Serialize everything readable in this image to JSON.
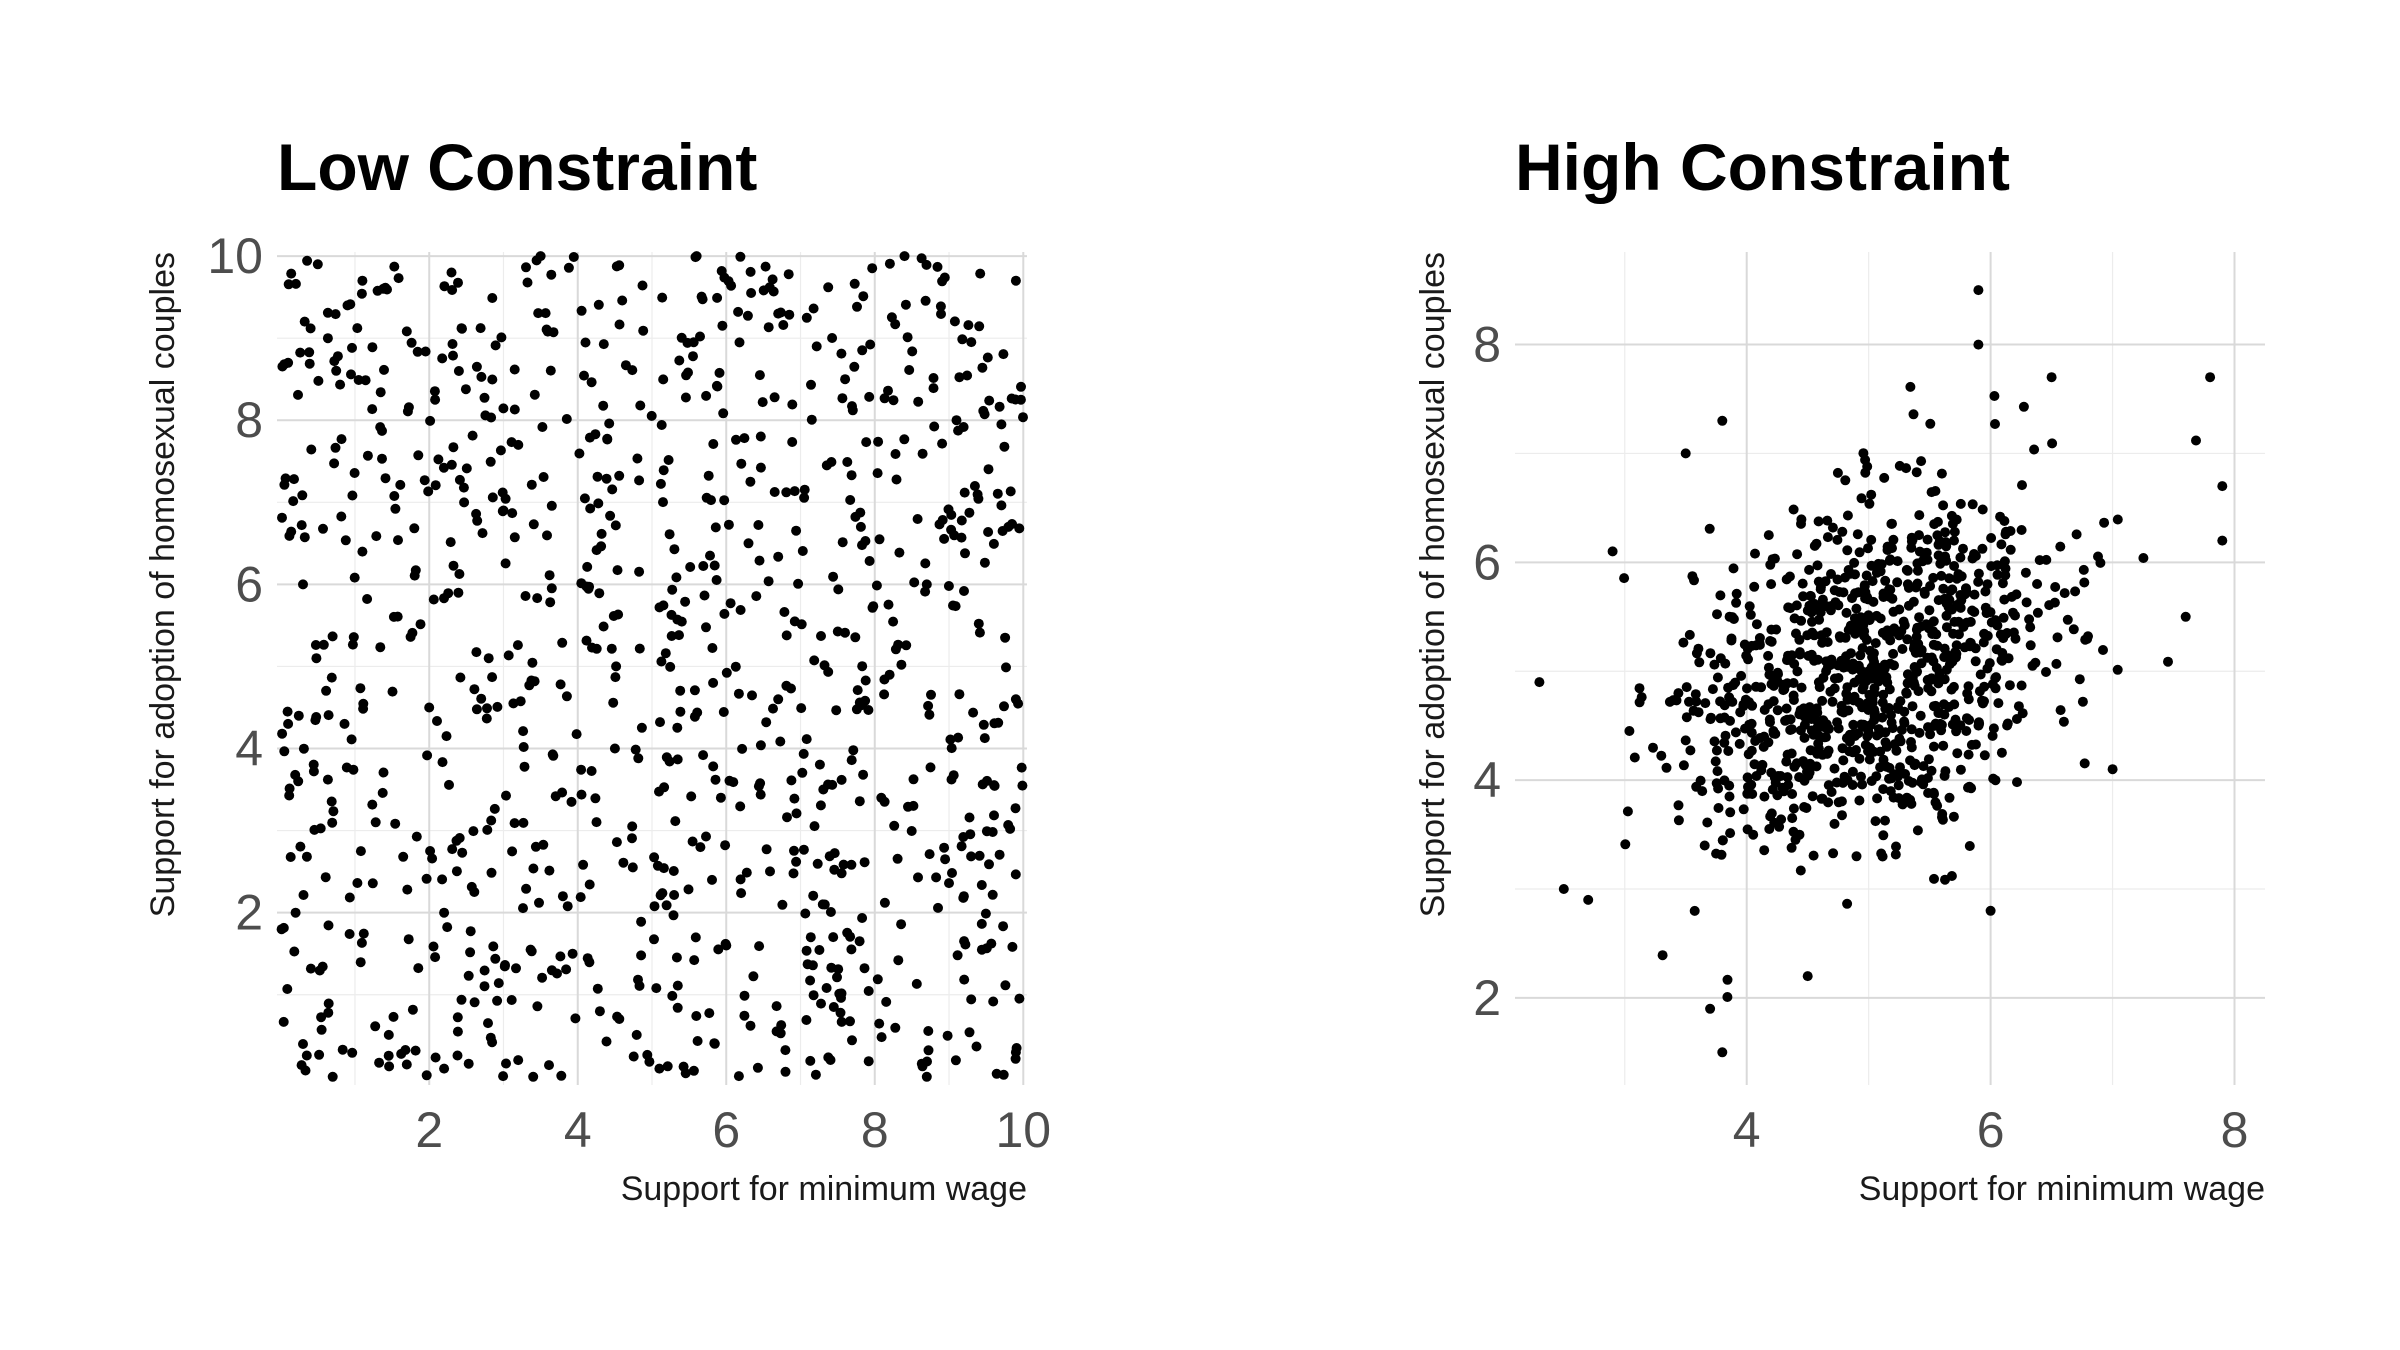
{
  "chart_data": [
    {
      "type": "scatter",
      "title": "Low Constraint",
      "xlabel": "Support for minimum wage",
      "ylabel": "Support for adoption of homosexual couples",
      "xlim": [
        -0.05,
        10.05
      ],
      "ylim": [
        -0.1,
        10.05
      ],
      "xticks": [
        2,
        4,
        6,
        8,
        10
      ],
      "yticks": [
        2,
        4,
        6,
        8,
        10
      ],
      "x_minor_ticks": [
        1,
        3,
        5,
        7,
        9
      ],
      "y_minor_ticks": [
        1,
        3,
        5,
        7,
        9
      ],
      "grid": true,
      "point_color": "#000000",
      "distribution": {
        "kind": "uniform",
        "x_range": [
          0,
          10
        ],
        "y_range": [
          0,
          10
        ],
        "n": 1000
      },
      "points_sample": [
        [
          0.5,
          9.9
        ],
        [
          1.1,
          9.7
        ],
        [
          2.3,
          9.8
        ],
        [
          3.5,
          10.0
        ],
        [
          5.6,
          10.0
        ],
        [
          8.4,
          10.0
        ],
        [
          9.9,
          9.7
        ],
        [
          0.1,
          8.7
        ],
        [
          2.4,
          8.6
        ],
        [
          3.2,
          7.7
        ],
        [
          7.6,
          8.5
        ],
        [
          9.1,
          8.0
        ],
        [
          0.3,
          6.0
        ],
        [
          1.1,
          6.4
        ],
        [
          3.0,
          6.9
        ],
        [
          6.3,
          6.5
        ],
        [
          8.7,
          6.0
        ],
        [
          9.8,
          6.7
        ],
        [
          0.1,
          4.3
        ],
        [
          2.0,
          4.5
        ],
        [
          4.5,
          4.0
        ],
        [
          6.7,
          4.6
        ],
        [
          8.2,
          4.9
        ],
        [
          9.9,
          4.6
        ],
        [
          0.2,
          2.0
        ],
        [
          2.2,
          2.0
        ],
        [
          3.8,
          2.2
        ],
        [
          6.0,
          1.6
        ],
        [
          7.3,
          2.1
        ],
        [
          9.2,
          2.2
        ],
        [
          0.3,
          0.4
        ],
        [
          0.7,
          0.0
        ],
        [
          2.2,
          0.1
        ],
        [
          3.4,
          0.0
        ],
        [
          5.1,
          0.1
        ],
        [
          8.7,
          0.0
        ],
        [
          9.9,
          0.3
        ]
      ]
    },
    {
      "type": "scatter",
      "title": "High Constraint",
      "xlabel": "Support for minimum wage",
      "ylabel": "Support for adoption of homosexual couples",
      "xlim": [
        2.1,
        8.25
      ],
      "ylim": [
        1.2,
        8.85
      ],
      "xticks": [
        4,
        6,
        8
      ],
      "yticks": [
        2,
        4,
        6,
        8
      ],
      "x_minor_ticks": [
        3,
        5,
        7
      ],
      "y_minor_ticks": [
        3,
        5,
        7
      ],
      "grid": true,
      "point_color": "#000000",
      "distribution": {
        "kind": "bivariate_normal",
        "mean": [
          5.0,
          5.0
        ],
        "sd": [
          0.8,
          0.8
        ],
        "correlation": 0.35,
        "n": 1000
      },
      "points_sample": [
        [
          2.3,
          4.9
        ],
        [
          2.5,
          3.0
        ],
        [
          2.7,
          2.9
        ],
        [
          2.9,
          6.1
        ],
        [
          3.5,
          7.0
        ],
        [
          3.8,
          7.3
        ],
        [
          3.7,
          1.9
        ],
        [
          3.8,
          1.5
        ],
        [
          4.5,
          2.2
        ],
        [
          5.9,
          8.5
        ],
        [
          5.9,
          8.0
        ],
        [
          6.0,
          2.8
        ],
        [
          6.5,
          7.7
        ],
        [
          7.8,
          7.7
        ],
        [
          7.9,
          6.7
        ],
        [
          7.9,
          6.2
        ],
        [
          7.0,
          4.1
        ],
        [
          7.6,
          5.5
        ],
        [
          5.0,
          5.0
        ],
        [
          5.4,
          5.4
        ],
        [
          4.6,
          4.4
        ],
        [
          4.2,
          5.8
        ],
        [
          5.7,
          6.2
        ],
        [
          4.9,
          3.3
        ]
      ]
    }
  ]
}
